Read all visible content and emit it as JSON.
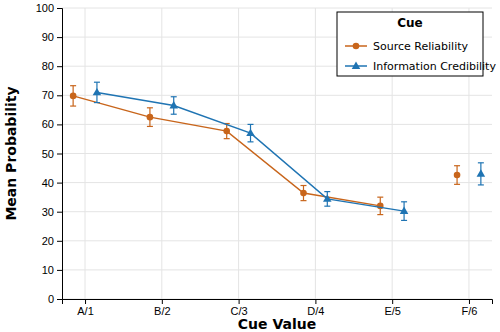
{
  "chart_data": {
    "type": "line",
    "x_label": "Cue Value",
    "y_label": "Mean Probability",
    "categories": [
      "A/1",
      "B/2",
      "C/3",
      "D/4",
      "E/5",
      "F/6"
    ],
    "ylim": [
      0,
      100
    ],
    "yticks": [
      0,
      10,
      20,
      30,
      40,
      50,
      60,
      70,
      80,
      90,
      100
    ],
    "grid": true,
    "legend": "top-right",
    "legend_title": "Cue",
    "series": [
      {
        "name": "Source Reliability",
        "type": "line",
        "marker": "circle",
        "color": "#c8651b",
        "values": [
          69.8,
          62.5,
          57.7,
          36.4,
          32.0,
          null
        ],
        "errors": [
          3.5,
          3.2,
          2.6,
          2.6,
          3.0,
          null
        ]
      },
      {
        "name": "Information Credibility",
        "type": "line",
        "marker": "triangle",
        "color": "#1f74b3",
        "values": [
          71.0,
          66.5,
          57.0,
          34.4,
          30.2,
          null
        ],
        "errors": [
          3.5,
          3.0,
          3.0,
          2.5,
          3.2,
          null
        ]
      },
      {
        "name": "Source Reliability",
        "type": "scatter",
        "marker": "circle",
        "color": "#c8651b",
        "values": [
          null,
          null,
          null,
          null,
          null,
          42.6
        ],
        "errors": [
          null,
          null,
          null,
          null,
          null,
          3.2
        ]
      },
      {
        "name": "Information Credibility",
        "type": "scatter",
        "marker": "triangle",
        "color": "#1f74b3",
        "values": [
          null,
          null,
          null,
          null,
          null,
          43.0
        ],
        "errors": [
          null,
          null,
          null,
          null,
          null,
          3.8
        ]
      }
    ]
  }
}
